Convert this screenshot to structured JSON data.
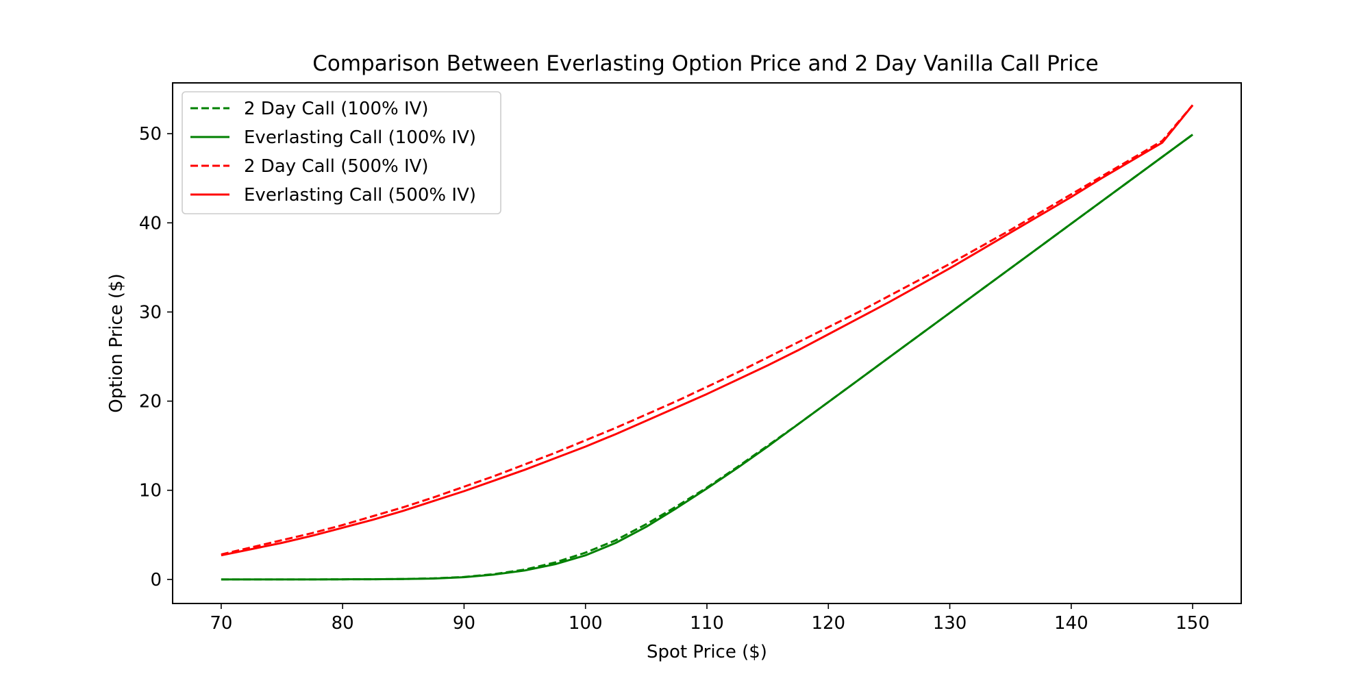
{
  "chart_data": {
    "type": "line",
    "title": "Comparison Between Everlasting Option Price and 2 Day Vanilla Call Price",
    "xlabel": "Spot Price ($)",
    "ylabel": "Option Price ($)",
    "xlim": [
      66,
      154
    ],
    "ylim": [
      -2.7,
      55.7
    ],
    "xticks": [
      70,
      80,
      90,
      100,
      110,
      120,
      130,
      140,
      150
    ],
    "yticks": [
      0,
      10,
      20,
      30,
      40,
      50
    ],
    "grid": false,
    "legend_position": "top-left",
    "x": [
      70,
      72.5,
      75,
      77.5,
      80,
      82.5,
      85,
      87.5,
      90,
      92.5,
      95,
      97.5,
      100,
      102.5,
      105,
      107.5,
      110,
      112.5,
      115,
      117.5,
      120,
      122.5,
      125,
      127.5,
      130,
      132.5,
      135,
      137.5,
      140,
      142.5,
      145,
      147.5,
      150
    ],
    "series": [
      {
        "name": "2 Day Call (100% IV)",
        "color": "#008000",
        "dash": "dashed",
        "values": [
          0,
          0,
          0,
          0,
          0.01,
          0.02,
          0.05,
          0.12,
          0.28,
          0.6,
          1.1,
          1.9,
          3.0,
          4.4,
          6.2,
          8.2,
          10.3,
          12.6,
          15.0,
          17.4,
          19.9,
          22.4,
          24.9,
          27.4,
          29.9,
          32.4,
          34.9,
          37.4,
          39.9,
          42.4,
          44.9,
          47.4,
          49.9
        ]
      },
      {
        "name": "Everlasting Call (100% IV)",
        "color": "#008000",
        "dash": "solid",
        "values": [
          0,
          0,
          0,
          0,
          0.01,
          0.02,
          0.04,
          0.1,
          0.25,
          0.55,
          1.0,
          1.7,
          2.7,
          4.1,
          5.9,
          8.0,
          10.2,
          12.5,
          14.9,
          17.4,
          19.9,
          22.4,
          24.9,
          27.4,
          29.9,
          32.4,
          34.9,
          37.4,
          39.9,
          42.4,
          44.9,
          47.4,
          49.9
        ]
      },
      {
        "name": "2 Day Call (500% IV)",
        "color": "#ff0000",
        "dash": "dashed",
        "values": [
          2.8,
          3.6,
          4.4,
          5.2,
          6.1,
          7.1,
          8.1,
          9.2,
          10.4,
          11.6,
          12.9,
          14.2,
          15.6,
          17.0,
          18.5,
          20.0,
          21.6,
          23.2,
          24.9,
          26.6,
          28.3,
          30.0,
          31.8,
          33.6,
          35.4,
          37.3,
          39.2,
          41.2,
          43.2,
          45.2,
          47.2,
          49.2,
          53.2
        ]
      },
      {
        "name": "Everlasting Call (500% IV)",
        "color": "#ff0000",
        "dash": "solid",
        "values": [
          2.7,
          3.4,
          4.1,
          4.9,
          5.8,
          6.7,
          7.7,
          8.8,
          9.9,
          11.1,
          12.3,
          13.6,
          14.9,
          16.3,
          17.8,
          19.3,
          20.8,
          22.4,
          24.0,
          25.7,
          27.5,
          29.3,
          31.1,
          33.0,
          34.9,
          36.9,
          38.9,
          40.9,
          42.9,
          45.0,
          47.0,
          49.0,
          53.2
        ]
      }
    ]
  }
}
